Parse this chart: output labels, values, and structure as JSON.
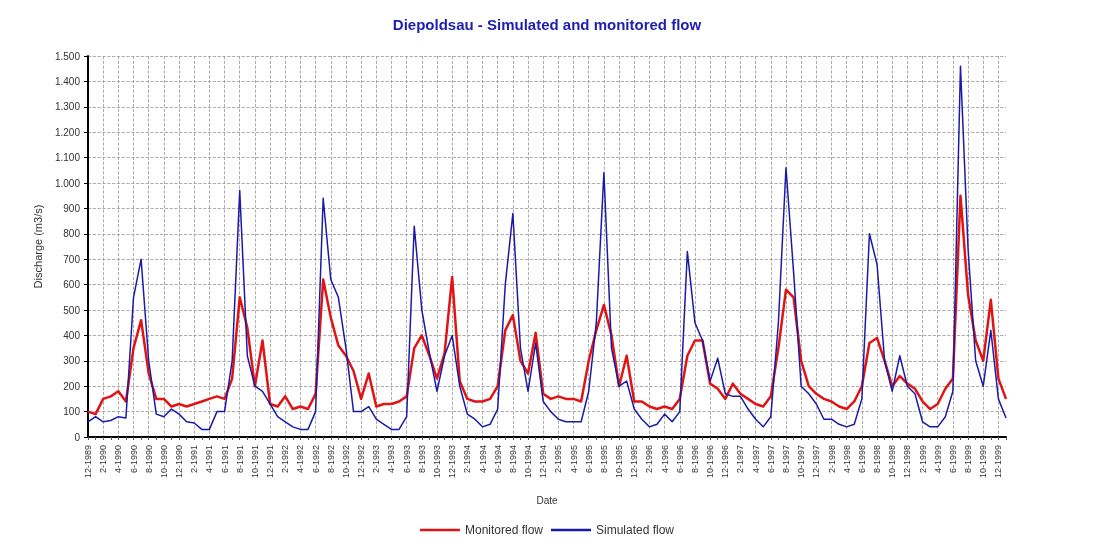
{
  "chart_data": {
    "type": "line",
    "title": "Diepoldsau - Simulated and monitored flow",
    "xlabel": "Date",
    "ylabel": "Discharge (m3/s)",
    "categories": [
      "12-1989",
      null,
      "2-1990",
      null,
      "4-1990",
      null,
      "6-1990",
      null,
      "8-1990",
      null,
      "10-1990",
      null,
      "12-1990",
      null,
      "2-1991",
      null,
      "4-1991",
      null,
      "6-1991",
      null,
      "8-1991",
      null,
      "10-1991",
      null,
      "12-1991",
      null,
      "2-1992",
      null,
      "4-1992",
      null,
      "6-1992",
      null,
      "8-1992",
      null,
      "10-1992",
      null,
      "12-1992",
      null,
      "2-1993",
      null,
      "4-1993",
      null,
      "6-1993",
      null,
      "8-1993",
      null,
      "10-1993",
      null,
      "12-1993",
      null,
      "2-1994",
      null,
      "4-1994",
      null,
      "6-1994",
      null,
      "8-1994",
      null,
      "10-1994",
      null,
      "12-1994",
      null,
      "2-1995",
      null,
      "4-1995",
      null,
      "6-1995",
      null,
      "8-1995",
      null,
      "10-1995",
      null,
      "12-1995",
      null,
      "2-1996",
      null,
      "4-1996",
      null,
      "6-1996",
      null,
      "8-1996",
      null,
      "10-1996",
      null,
      "12-1996",
      null,
      "2-1997",
      null,
      "4-1997",
      null,
      "6-1997",
      null,
      "8-1997",
      null,
      "10-1997",
      null,
      "12-1997",
      null,
      "2-1998",
      null,
      "4-1998",
      null,
      "6-1998",
      null,
      "8-1998",
      null,
      "10-1998",
      null,
      "12-1998",
      null,
      "2-1999",
      null,
      "4-1999",
      null,
      "6-1999",
      null,
      "8-1999",
      null,
      "10-1999",
      null,
      "12-1999",
      null
    ],
    "series": [
      {
        "name": "Monitored flow",
        "color": "#e01414",
        "values": [
          100,
          90,
          150,
          160,
          180,
          140,
          350,
          460,
          250,
          150,
          150,
          120,
          130,
          120,
          130,
          140,
          150,
          160,
          150,
          230,
          550,
          430,
          200,
          380,
          130,
          120,
          160,
          110,
          120,
          110,
          170,
          620,
          470,
          360,
          320,
          260,
          150,
          250,
          120,
          130,
          130,
          140,
          160,
          350,
          400,
          320,
          230,
          330,
          630,
          220,
          150,
          140,
          140,
          150,
          200,
          420,
          480,
          300,
          250,
          410,
          170,
          150,
          160,
          150,
          150,
          140,
          300,
          420,
          520,
          400,
          200,
          320,
          140,
          140,
          120,
          110,
          120,
          110,
          150,
          320,
          380,
          380,
          210,
          190,
          150,
          210,
          170,
          150,
          130,
          120,
          160,
          350,
          580,
          550,
          300,
          200,
          170,
          150,
          140,
          120,
          110,
          140,
          200,
          370,
          390,
          300,
          200,
          240,
          210,
          190,
          140,
          110,
          130,
          190,
          230,
          950,
          560,
          380,
          300,
          540,
          230,
          150
        ]
      },
      {
        "name": "Simulated flow",
        "color": "#1a1aa8",
        "values": [
          60,
          80,
          60,
          65,
          80,
          75,
          550,
          700,
          300,
          90,
          80,
          110,
          90,
          60,
          55,
          30,
          30,
          100,
          100,
          300,
          970,
          320,
          200,
          180,
          130,
          80,
          60,
          40,
          30,
          30,
          100,
          940,
          620,
          550,
          350,
          100,
          100,
          120,
          70,
          50,
          30,
          30,
          80,
          830,
          500,
          330,
          180,
          320,
          400,
          200,
          90,
          70,
          40,
          50,
          110,
          600,
          880,
          350,
          180,
          370,
          140,
          100,
          70,
          60,
          60,
          60,
          180,
          450,
          1040,
          350,
          200,
          220,
          110,
          70,
          40,
          50,
          90,
          60,
          100,
          730,
          450,
          380,
          220,
          310,
          170,
          160,
          160,
          110,
          70,
          40,
          80,
          450,
          1060,
          650,
          200,
          170,
          130,
          70,
          70,
          50,
          40,
          50,
          150,
          800,
          680,
          300,
          180,
          320,
          200,
          170,
          60,
          40,
          40,
          80,
          180,
          1460,
          740,
          300,
          200,
          420,
          150,
          75
        ]
      }
    ],
    "ylim": [
      0,
      1500
    ],
    "yticks": [
      0,
      100,
      200,
      300,
      400,
      500,
      600,
      700,
      800,
      900,
      {
        "value": 1000,
        "label": "1.000"
      },
      {
        "value": 1100,
        "label": "1.100"
      },
      {
        "value": 1200,
        "label": "1.200"
      },
      {
        "value": 1300,
        "label": "1.300"
      },
      {
        "value": 1400,
        "label": "1.400"
      },
      {
        "value": 1500,
        "label": "1.500"
      }
    ],
    "grid": true,
    "legend": "bottom",
    "marker": "none",
    "line_style": "solid"
  }
}
